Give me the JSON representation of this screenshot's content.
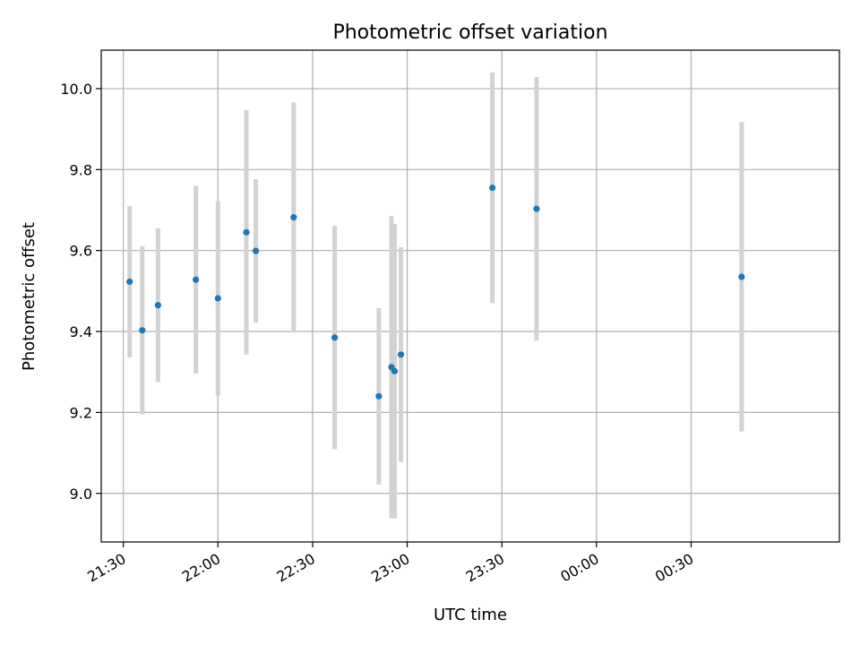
{
  "chart_data": {
    "type": "scatter",
    "title": "Photometric offset variation",
    "xlabel": "UTC time",
    "ylabel": "Photometric offset",
    "x_ticks": [
      "21:30",
      "22:00",
      "22:30",
      "23:00",
      "23:30",
      "00:00",
      "00:30"
    ],
    "y_ticks": [
      "9.0",
      "9.2",
      "9.4",
      "9.6",
      "9.8",
      "10.0"
    ],
    "xlim": [
      "21:23",
      "01:17"
    ],
    "ylim": [
      8.88,
      10.095
    ],
    "grid": true,
    "x_axis_date_format": "HH:MM",
    "colors": {
      "point": "#1f77b4",
      "errorbar": "#d3d3d3",
      "grid": "#b0b0b0"
    },
    "points": [
      {
        "time": "21:32",
        "y": 9.523,
        "err": 0.187
      },
      {
        "time": "21:36",
        "y": 9.403,
        "err": 0.208
      },
      {
        "time": "21:41",
        "y": 9.465,
        "err": 0.19
      },
      {
        "time": "21:53",
        "y": 9.528,
        "err": 0.232
      },
      {
        "time": "22:00",
        "y": 9.482,
        "err": 0.24
      },
      {
        "time": "22:09",
        "y": 9.645,
        "err": 0.302
      },
      {
        "time": "22:12",
        "y": 9.599,
        "err": 0.177
      },
      {
        "time": "22:24",
        "y": 9.682,
        "err": 0.284
      },
      {
        "time": "22:37",
        "y": 9.385,
        "err": 0.276
      },
      {
        "time": "22:51",
        "y": 9.24,
        "err": 0.218
      },
      {
        "time": "22:55",
        "y": 9.312,
        "err": 0.373
      },
      {
        "time": "22:56",
        "y": 9.302,
        "err": 0.364
      },
      {
        "time": "22:58",
        "y": 9.343,
        "err": 0.265
      },
      {
        "time": "23:27",
        "y": 9.755,
        "err": 0.285
      },
      {
        "time": "23:41",
        "y": 9.703,
        "err": 0.326
      },
      {
        "time": "00:46",
        "y": 9.535,
        "err": 0.382
      }
    ]
  }
}
